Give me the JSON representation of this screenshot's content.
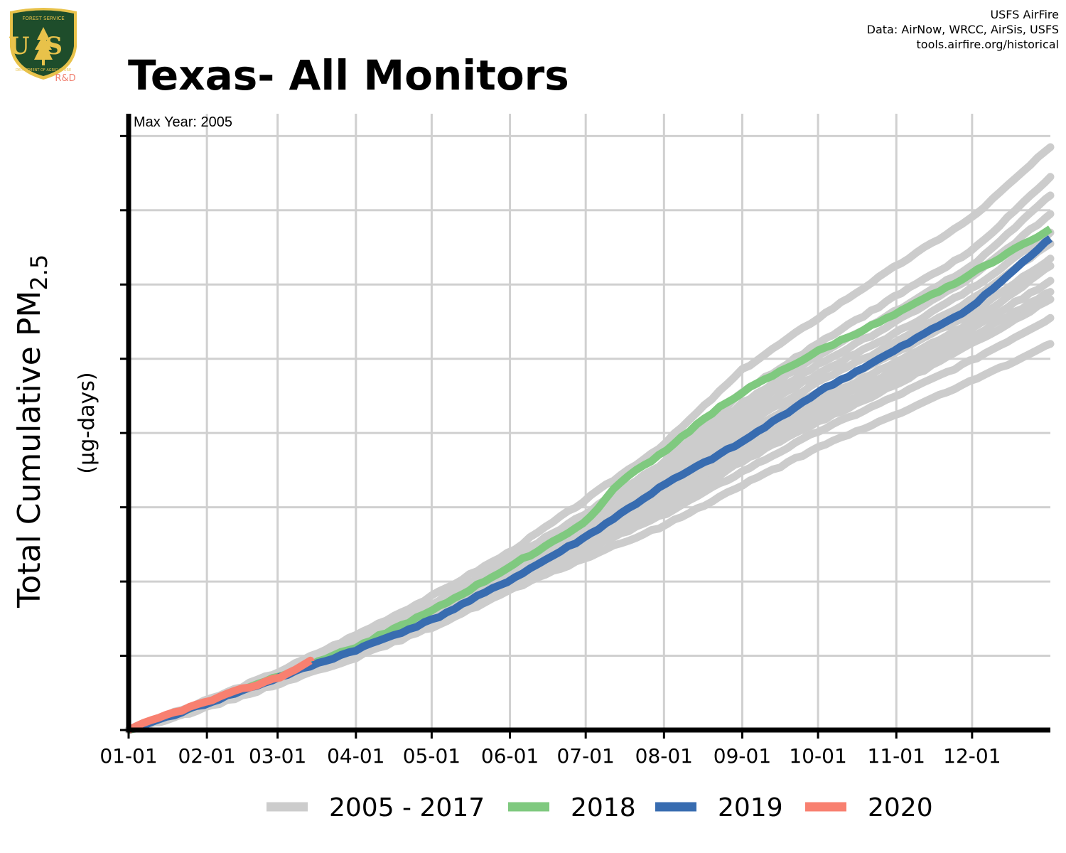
{
  "header": {
    "title": "Texas- All Monitors",
    "credits": [
      "USFS AirFire",
      "Data: AirNow, WRCC, AirSis, USFS",
      "tools.airfire.org/historical"
    ]
  },
  "logo": {
    "top_text": "FOREST SERVICE",
    "letters": "US",
    "bottom_text": "DEPARTMENT OF AGRICULTURE",
    "suffix": "R&D",
    "colors": {
      "shield": "#1e4d2b",
      "accent": "#e8c24a",
      "suffix": "#f08070"
    }
  },
  "chart_data": {
    "type": "line",
    "annotation": "Max Year: 2005",
    "ylabel": {
      "main": "Total Cumulative PM",
      "sub": "2.5",
      "units": "(µg-days)"
    },
    "x_ticks": [
      "01-01",
      "02-01",
      "03-01",
      "04-01",
      "05-01",
      "06-01",
      "07-01",
      "08-01",
      "09-01",
      "10-01",
      "11-01",
      "12-01"
    ],
    "x_tick_days": [
      0,
      31,
      59,
      90,
      120,
      151,
      181,
      212,
      243,
      273,
      304,
      334
    ],
    "xlim": [
      0,
      365
    ],
    "ylim": [
      0,
      8.3
    ],
    "y_gridlines": [
      1,
      2,
      3,
      4,
      5,
      6,
      7,
      8
    ],
    "grid": true,
    "legend": {
      "placement": "bottom"
    },
    "background_series": {
      "name": "2005 - 2017",
      "color": "#cccccc",
      "series": [
        {
          "x": [
            0,
            31,
            59,
            90,
            120,
            151,
            181,
            212,
            243,
            273,
            304,
            334,
            365
          ],
          "y": [
            0,
            0.4,
            0.78,
            1.28,
            1.8,
            2.4,
            3.1,
            3.85,
            4.85,
            5.55,
            6.25,
            6.9,
            7.85
          ]
        },
        {
          "x": [
            0,
            31,
            59,
            90,
            120,
            151,
            181,
            212,
            243,
            273,
            304,
            334,
            365
          ],
          "y": [
            0,
            0.38,
            0.74,
            1.22,
            1.7,
            2.3,
            2.92,
            3.6,
            4.55,
            5.2,
            5.85,
            6.45,
            7.45
          ]
        },
        {
          "x": [
            0,
            31,
            59,
            90,
            120,
            151,
            181,
            212,
            243,
            273,
            304,
            334,
            365
          ],
          "y": [
            0,
            0.37,
            0.73,
            1.2,
            1.68,
            2.28,
            2.88,
            3.55,
            4.4,
            5.05,
            5.65,
            6.25,
            7.2
          ]
        },
        {
          "x": [
            0,
            31,
            59,
            90,
            120,
            151,
            181,
            212,
            243,
            273,
            304,
            334,
            365
          ],
          "y": [
            0,
            0.36,
            0.72,
            1.18,
            1.66,
            2.25,
            2.85,
            3.5,
            4.3,
            4.92,
            5.5,
            6.1,
            6.95
          ]
        },
        {
          "x": [
            0,
            31,
            59,
            90,
            120,
            151,
            181,
            212,
            243,
            273,
            304,
            334,
            365
          ],
          "y": [
            0,
            0.36,
            0.71,
            1.17,
            1.64,
            2.22,
            2.8,
            3.45,
            4.2,
            4.8,
            5.35,
            5.95,
            6.7
          ]
        },
        {
          "x": [
            0,
            31,
            59,
            90,
            120,
            151,
            181,
            212,
            243,
            273,
            304,
            334,
            365
          ],
          "y": [
            0,
            0.35,
            0.7,
            1.15,
            1.62,
            2.18,
            2.75,
            3.35,
            4.1,
            4.68,
            5.22,
            5.8,
            6.55
          ]
        },
        {
          "x": [
            0,
            31,
            59,
            90,
            120,
            151,
            181,
            212,
            243,
            273,
            304,
            334,
            365
          ],
          "y": [
            0,
            0.35,
            0.7,
            1.14,
            1.6,
            2.15,
            2.72,
            3.28,
            4.0,
            4.55,
            5.08,
            5.62,
            6.35
          ]
        },
        {
          "x": [
            0,
            31,
            59,
            90,
            120,
            151,
            181,
            212,
            243,
            273,
            304,
            334,
            365
          ],
          "y": [
            0,
            0.34,
            0.69,
            1.12,
            1.58,
            2.12,
            2.68,
            3.22,
            3.9,
            4.45,
            4.95,
            5.5,
            6.25
          ]
        },
        {
          "x": [
            0,
            31,
            59,
            90,
            120,
            151,
            181,
            212,
            243,
            273,
            304,
            334,
            365
          ],
          "y": [
            0,
            0.34,
            0.68,
            1.1,
            1.55,
            2.08,
            2.62,
            3.15,
            3.8,
            4.35,
            4.85,
            5.4,
            6.05
          ]
        },
        {
          "x": [
            0,
            31,
            59,
            90,
            120,
            151,
            181,
            212,
            243,
            273,
            304,
            334,
            365
          ],
          "y": [
            0,
            0.33,
            0.67,
            1.08,
            1.52,
            2.02,
            2.55,
            3.05,
            3.7,
            4.25,
            4.75,
            5.3,
            5.9
          ]
        },
        {
          "x": [
            0,
            31,
            59,
            90,
            120,
            151,
            181,
            212,
            243,
            273,
            304,
            334,
            365
          ],
          "y": [
            0,
            0.32,
            0.66,
            1.06,
            1.5,
            1.98,
            2.5,
            2.98,
            3.62,
            4.15,
            4.65,
            5.2,
            5.8
          ]
        },
        {
          "x": [
            0,
            31,
            59,
            90,
            120,
            151,
            181,
            212,
            243,
            273,
            304,
            334,
            365
          ],
          "y": [
            0,
            0.32,
            0.65,
            1.03,
            1.46,
            1.95,
            2.42,
            2.9,
            3.48,
            4.02,
            4.5,
            4.98,
            5.55
          ]
        },
        {
          "x": [
            0,
            31,
            59,
            90,
            120,
            151,
            181,
            212,
            243,
            273,
            304,
            334,
            365
          ],
          "y": [
            0,
            0.3,
            0.62,
            0.98,
            1.38,
            1.88,
            2.32,
            2.75,
            3.3,
            3.8,
            4.25,
            4.7,
            5.2
          ]
        }
      ]
    },
    "series": [
      {
        "name": "2018",
        "color": "#7fc97f",
        "x": [
          0,
          31,
          59,
          90,
          120,
          151,
          181,
          195,
          212,
          230,
          243,
          273,
          304,
          334,
          365
        ],
        "y": [
          0,
          0.38,
          0.72,
          1.12,
          1.6,
          2.2,
          2.8,
          3.35,
          3.75,
          4.25,
          4.55,
          5.1,
          5.6,
          6.15,
          6.75
        ]
      },
      {
        "name": "2019",
        "color": "#386cb0",
        "x": [
          0,
          31,
          59,
          90,
          120,
          151,
          181,
          212,
          243,
          273,
          304,
          334,
          365
        ],
        "y": [
          0,
          0.36,
          0.7,
          1.08,
          1.48,
          2.02,
          2.6,
          3.3,
          3.88,
          4.55,
          5.12,
          5.7,
          6.62
        ]
      },
      {
        "name": "2020",
        "color": "#f88070",
        "x": [
          0,
          10,
          20,
          31,
          45,
          59,
          65,
          72
        ],
        "y": [
          0,
          0.14,
          0.26,
          0.38,
          0.55,
          0.7,
          0.8,
          0.93
        ]
      }
    ]
  }
}
